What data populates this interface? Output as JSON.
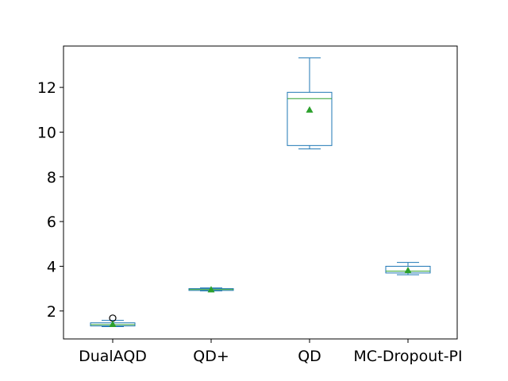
{
  "chart_data": {
    "type": "box",
    "categories": [
      "DualAQD",
      "QD+",
      "QD",
      "MC-Dropout-PI"
    ],
    "boxes": [
      {
        "category": "DualAQD",
        "whisker_low": 1.3,
        "q1": 1.33,
        "median": 1.39,
        "q3": 1.47,
        "whisker_high": 1.58,
        "mean": 1.41,
        "outliers": [
          1.68
        ]
      },
      {
        "category": "QD+",
        "whisker_low": 2.9,
        "q1": 2.92,
        "median": 2.96,
        "q3": 3.0,
        "whisker_high": 3.03,
        "mean": 2.96,
        "outliers": []
      },
      {
        "category": "QD",
        "whisker_low": 9.25,
        "q1": 9.4,
        "median": 11.5,
        "q3": 11.78,
        "whisker_high": 13.32,
        "mean": 11.0,
        "outliers": []
      },
      {
        "category": "MC-Dropout-PI",
        "whisker_low": 3.62,
        "q1": 3.7,
        "median": 3.78,
        "q3": 4.0,
        "whisker_high": 4.17,
        "mean": 3.82,
        "outliers": []
      }
    ],
    "ylim": [
      0.75,
      13.85
    ],
    "yticks": [
      2,
      4,
      6,
      8,
      10,
      12
    ],
    "ytick_labels": [
      "2",
      "4",
      "6",
      "8",
      "10",
      "12"
    ],
    "title": "",
    "xlabel": "",
    "ylabel": "",
    "grid": false,
    "colors": {
      "box": "#1f77b4",
      "median": "#2ca02c",
      "mean": "#2ca02c",
      "outlier": "#000000"
    }
  }
}
